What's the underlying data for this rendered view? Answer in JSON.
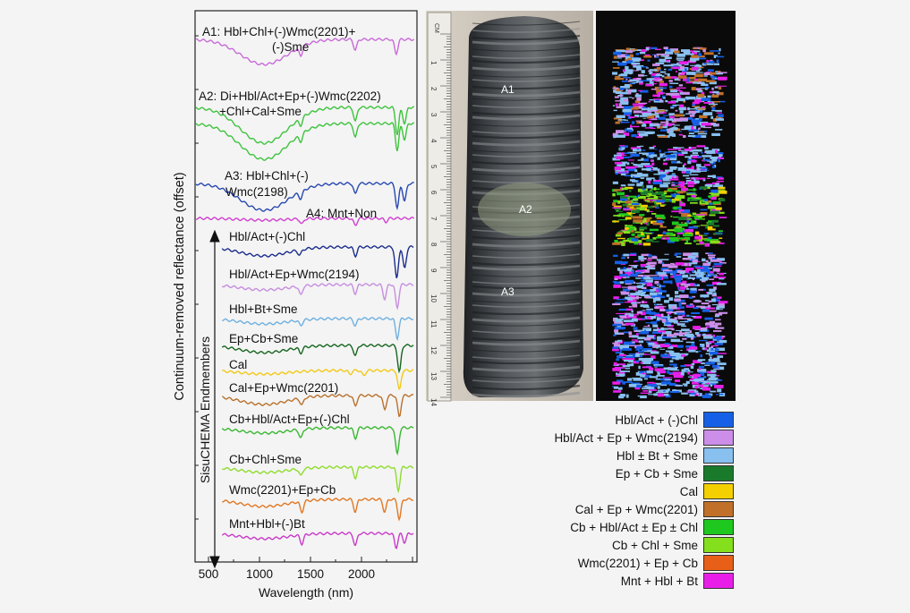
{
  "plot": {
    "ylabel": "Continuum-removed reflectance (offset)",
    "xlabel": "Wavelength (nm)",
    "inner_label": "SisuCHEMA Endmembers",
    "xticks": [
      "500",
      "1000",
      "1500",
      "2000"
    ]
  },
  "chart_data": {
    "type": "line",
    "xlabel": "Wavelength (nm)",
    "ylabel": "Continuum-removed reflectance (offset)",
    "xlim": [
      400,
      2500
    ],
    "series": [
      {
        "name": "A1: Hbl+Chl+(-)Wmc(2201)+ (-)Sme",
        "color": "#c86ad8"
      },
      {
        "name": "A2: Di+Hbl/Act+Ep+(-)Wmc(2202) +Chl+Cal+Sme",
        "color": "#3ec33e"
      },
      {
        "name": "A3: Hbl+Chl+(-) Wmc(2198)",
        "color": "#2848b0"
      },
      {
        "name": "A4: Mnt+Non",
        "color": "#d040d0"
      },
      {
        "name": "Hbl/Act+(-)Chl",
        "color": "#1c2d8c"
      },
      {
        "name": "Hbl/Act+Ep+Wmc(2194)",
        "color": "#c68ee0"
      },
      {
        "name": "Hbl+Bt+Sme",
        "color": "#6fb0e0"
      },
      {
        "name": "Ep+Cb+Sme",
        "color": "#16661e"
      },
      {
        "name": "Cal",
        "color": "#f2c918"
      },
      {
        "name": "Cal+Ep+Wmc(2201)",
        "color": "#b9712c"
      },
      {
        "name": "Cb+Hbl/Act+Ep+(-)Chl",
        "color": "#38b830"
      },
      {
        "name": "Cb+Chl+Sme",
        "color": "#8fdc2e"
      },
      {
        "name": "Wmc(2201)+Ep+Cb",
        "color": "#e07824"
      },
      {
        "name": "Mnt+Hbl+(-)Bt",
        "color": "#c83ac8"
      }
    ]
  },
  "labels": {
    "a1_line1": "A1: Hbl+Chl+(-)Wmc(2201)+",
    "a1_line2": "(-)Sme",
    "a2_line1": "A2: Di+Hbl/Act+Ep+(-)Wmc(2202)",
    "a2_line2": "+Chl+Cal+Sme",
    "a3_line1": "A3: Hbl+Chl+(-)",
    "a3_line2": "Wmc(2198)",
    "a4": "A4: Mnt+Non",
    "e1": "Hbl/Act+(-)Chl",
    "e2": "Hbl/Act+Ep+Wmc(2194)",
    "e3": "Hbl+Bt+Sme",
    "e4": "Ep+Cb+Sme",
    "e5": "Cal",
    "e6": "Cal+Ep+Wmc(2201)",
    "e7": "Cb+Hbl/Act+Ep+(-)Chl",
    "e8": "Cb+Chl+Sme",
    "e9": "Wmc(2201)+Ep+Cb",
    "e10": "Mnt+Hbl+(-)Bt"
  },
  "photo": {
    "core_labels": {
      "a1": "A1",
      "a2": "A2",
      "a3": "A3"
    },
    "ruler_unit": "CM",
    "ruler_numbers": [
      "1",
      "2",
      "3",
      "4",
      "5",
      "6",
      "7",
      "8",
      "9",
      "10",
      "11",
      "12",
      "13",
      "14"
    ]
  },
  "legend": [
    {
      "label": "Hbl/Act + (-)Chl",
      "color": "#1560e6"
    },
    {
      "label": "Hbl/Act + Ep + Wmc(2194)",
      "color": "#cc8ee8"
    },
    {
      "label": "Hbl ± Bt + Sme",
      "color": "#88c0f0"
    },
    {
      "label": "Ep + Cb + Sme",
      "color": "#1a7a2c"
    },
    {
      "label": "Cal",
      "color": "#f5d000"
    },
    {
      "label": "Cal + Ep + Wmc(2201)",
      "color": "#c07028"
    },
    {
      "label": "Cb + Hbl/Act ± Ep ± Chl",
      "color": "#1ec81e"
    },
    {
      "label": "Cb + Chl + Sme",
      "color": "#84e01c"
    },
    {
      "label": "Wmc(2201) + Ep + Cb",
      "color": "#e86018"
    },
    {
      "label": "Mnt + Hbl + Bt",
      "color": "#e81ee8"
    }
  ]
}
